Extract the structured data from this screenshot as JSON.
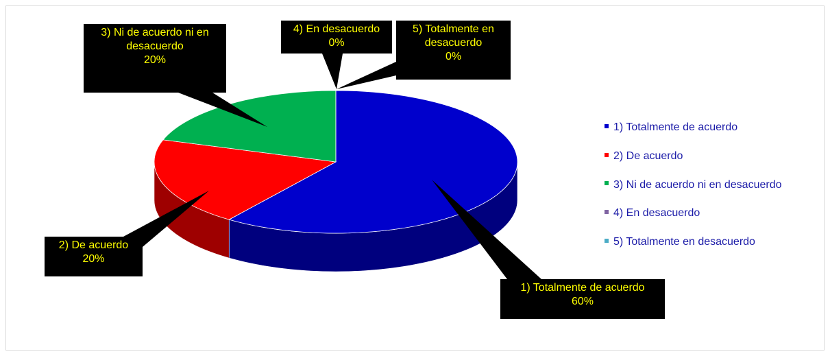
{
  "chart_data": {
    "type": "pie",
    "three_d": true,
    "categories": [
      "1) Totalmente de acuerdo",
      "2) De acuerdo",
      "3) Ni de acuerdo ni en desacuerdo",
      "4) En desacuerdo",
      "5) Totalmente en desacuerdo"
    ],
    "values": [
      60,
      20,
      20,
      0,
      0
    ],
    "value_labels": [
      "60%",
      "20%",
      "20%",
      "0%",
      "0%"
    ],
    "colors": [
      "#0000cc",
      "#ff0000",
      "#00b050",
      "#8064a2",
      "#4bacc6"
    ],
    "legend": "right"
  }
}
